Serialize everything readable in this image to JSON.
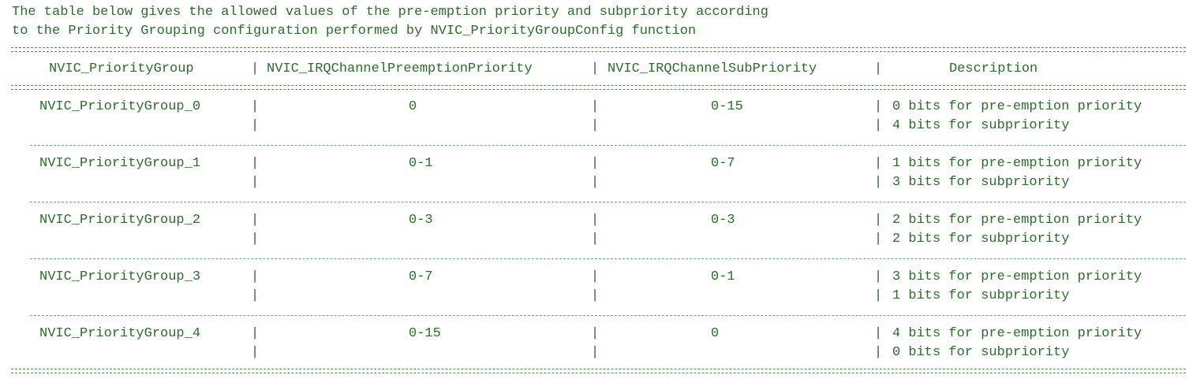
{
  "intro": {
    "line1": "The table below gives the allowed values of the pre-emption priority and subpriority according",
    "line2": "to the Priority Grouping configuration performed by NVIC_PriorityGroupConfig function"
  },
  "table": {
    "headers": {
      "group": "NVIC_PriorityGroup",
      "preemption": "NVIC_IRQChannelPreemptionPriority",
      "sub": "NVIC_IRQChannelSubPriority",
      "desc": "Description"
    },
    "separator": "|",
    "rows": [
      {
        "group": "NVIC_PriorityGroup_0",
        "preemption": "0",
        "sub": "0-15",
        "desc1": "0 bits for pre-emption priority",
        "desc2": "4 bits for subpriority"
      },
      {
        "group": "NVIC_PriorityGroup_1",
        "preemption": "0-1",
        "sub": "0-7",
        "desc1": "1 bits for pre-emption priority",
        "desc2": "3 bits for subpriority"
      },
      {
        "group": "NVIC_PriorityGroup_2",
        "preemption": "0-3",
        "sub": "0-3",
        "desc1": "2 bits for pre-emption priority",
        "desc2": "2 bits for subpriority"
      },
      {
        "group": "NVIC_PriorityGroup_3",
        "preemption": "0-7",
        "sub": "0-1",
        "desc1": "3 bits for pre-emption priority",
        "desc2": "1 bits for subpriority"
      },
      {
        "group": "NVIC_PriorityGroup_4",
        "preemption": "0-15",
        "sub": "0",
        "desc1": "4 bits for pre-emption priority",
        "desc2": "0 bits for subpriority"
      }
    ]
  }
}
